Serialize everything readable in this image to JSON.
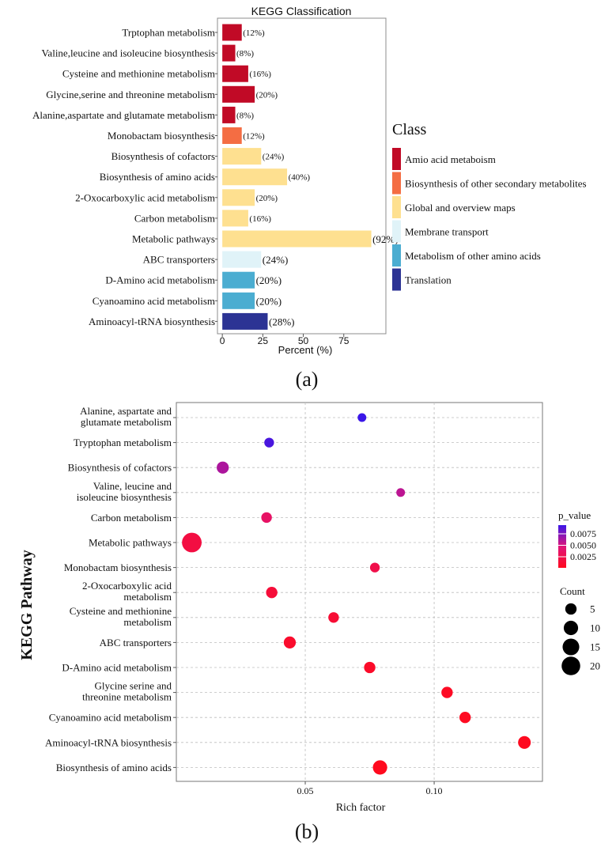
{
  "panel_a_label": "(a)",
  "panel_b_label": "(b)",
  "chart_data": [
    {
      "type": "bar",
      "orientation": "horizontal",
      "title": "KEGG Classification",
      "xlabel": "Percent (%)",
      "ylabel": "",
      "xlim": [
        -3,
        101
      ],
      "xticks": [
        0,
        25,
        50,
        75
      ],
      "grid": false,
      "legend_title": "Class",
      "legend_position": "right",
      "classes": [
        {
          "name": "Amio acid metaboism",
          "color": "#C10A26"
        },
        {
          "name": "Biosynthesis of other secondary metabolites",
          "color": "#F46D43"
        },
        {
          "name": "Global and overview maps",
          "color": "#FEE090"
        },
        {
          "name": "Membrane transport",
          "color": "#E0F3F8"
        },
        {
          "name": "Metabolism of other amino acids",
          "color": "#4BADD1"
        },
        {
          "name": "Translation",
          "color": "#2C3394"
        }
      ],
      "bars": [
        {
          "category": "Trptophan metabolism",
          "value": 12,
          "label": "(12%)",
          "class": 0
        },
        {
          "category": "Valine,leucine and isoleucine biosynthesis",
          "value": 8,
          "label": "(8%)",
          "class": 0
        },
        {
          "category": "Cysteine and methionine metabolism",
          "value": 16,
          "label": "(16%)",
          "class": 0
        },
        {
          "category": "Glycine,serine and threonine metabolism",
          "value": 20,
          "label": "(20%)",
          "class": 0
        },
        {
          "category": "Alanine,aspartate and glutamate metabolism",
          "value": 8,
          "label": "(8%)",
          "class": 0
        },
        {
          "category": "Monobactam biosynthesis",
          "value": 12,
          "label": "(12%)",
          "class": 1
        },
        {
          "category": "Biosynthesis of cofactors",
          "value": 24,
          "label": "(24%)",
          "class": 2
        },
        {
          "category": "Biosynthesis of amino acids",
          "value": 40,
          "label": "(40%)",
          "class": 2
        },
        {
          "category": "2-Oxocarboxylic acid metabolism",
          "value": 20,
          "label": "(20%)",
          "class": 2
        },
        {
          "category": "Carbon metabolism",
          "value": 16,
          "label": "(16%)",
          "class": 2
        },
        {
          "category": "Metabolic pathways",
          "value": 92,
          "label": "(92%)",
          "class": 2
        },
        {
          "category": "ABC transporters",
          "value": 24,
          "label": "(24%)",
          "class": 3
        },
        {
          "category": "D-Amino acid metabolism",
          "value": 20,
          "label": "(20%)",
          "class": 4
        },
        {
          "category": "Cyanoamino acid metabolism",
          "value": 20,
          "label": "(20%)",
          "class": 4
        },
        {
          "category": "Aminoacyl-tRNA biosynthesis",
          "value": 28,
          "label": "(28%)",
          "class": 5
        }
      ]
    },
    {
      "type": "scatter",
      "title": "",
      "xlabel": "Rich factor",
      "ylabel": "KEGG Pathway",
      "xlim": [
        0.0,
        0.142
      ],
      "xticks": [
        0.05,
        0.1
      ],
      "xtick_labels": [
        "0.05",
        "0.10"
      ],
      "grid": true,
      "color_legend_title": "p_value",
      "color_legend_ticks": [
        "0.0075",
        "0.0050",
        "0.0025"
      ],
      "color_scale": {
        "min_color": "#FF0A1E",
        "max_color": "#3A16E8",
        "min": 0.0005,
        "max": 0.0092
      },
      "size_legend_title": "Count",
      "size_legend_values": [
        5,
        10,
        15,
        20
      ],
      "points": [
        {
          "pathway": "Alanine, aspartate and glutamate metabolism",
          "label_lines": [
            "Alanine, aspartate and",
            "glutamate metabolism"
          ],
          "rich_factor": 0.072,
          "p_value": 0.0092,
          "count": 2
        },
        {
          "pathway": "Tryptophan metabolism",
          "label_lines": [
            "Tryptophan metabolism"
          ],
          "rich_factor": 0.036,
          "p_value": 0.0088,
          "count": 3
        },
        {
          "pathway": "Biosynthesis of cofactors",
          "label_lines": [
            "Biosynthesis of cofactors"
          ],
          "rich_factor": 0.018,
          "p_value": 0.0062,
          "count": 6
        },
        {
          "pathway": "Valine, leucine and isoleucine biosynthesis",
          "label_lines": [
            "Valine, leucine and",
            "isoleucine biosynthesis"
          ],
          "rich_factor": 0.087,
          "p_value": 0.0058,
          "count": 2
        },
        {
          "pathway": "Carbon metabolism",
          "label_lines": [
            "Carbon metabolism"
          ],
          "rich_factor": 0.035,
          "p_value": 0.0038,
          "count": 4
        },
        {
          "pathway": "Metabolic pathways",
          "label_lines": [
            "Metabolic pathways"
          ],
          "rich_factor": 0.006,
          "p_value": 0.0022,
          "count": 23
        },
        {
          "pathway": "Monobactam biosynthesis",
          "label_lines": [
            "Monobactam biosynthesis"
          ],
          "rich_factor": 0.077,
          "p_value": 0.0026,
          "count": 3
        },
        {
          "pathway": "2-Oxocarboxylic acid metabolism",
          "label_lines": [
            "2-Oxocarboxylic acid",
            "metabolism"
          ],
          "rich_factor": 0.037,
          "p_value": 0.0018,
          "count": 5
        },
        {
          "pathway": "Cysteine and methionine metabolism",
          "label_lines": [
            "Cysteine and methionine",
            "metabolism"
          ],
          "rich_factor": 0.061,
          "p_value": 0.0016,
          "count": 4
        },
        {
          "pathway": "ABC transporters",
          "label_lines": [
            "ABC transporters"
          ],
          "rich_factor": 0.044,
          "p_value": 0.0012,
          "count": 6
        },
        {
          "pathway": "D-Amino acid metabolism",
          "label_lines": [
            "D-Amino acid metabolism"
          ],
          "rich_factor": 0.075,
          "p_value": 0.001,
          "count": 5
        },
        {
          "pathway": "Glycine serine and threonine metabolism",
          "label_lines": [
            "Glycine serine and",
            "threonine metabolism"
          ],
          "rich_factor": 0.105,
          "p_value": 0.0008,
          "count": 5
        },
        {
          "pathway": "Cyanoamino acid metabolism",
          "label_lines": [
            "Cyanoamino acid metabolism"
          ],
          "rich_factor": 0.112,
          "p_value": 0.0007,
          "count": 5
        },
        {
          "pathway": "Aminoacyl-tRNA biosynthesis",
          "label_lines": [
            "Aminoacyl-tRNA biosynthesis"
          ],
          "rich_factor": 0.135,
          "p_value": 0.0006,
          "count": 7
        },
        {
          "pathway": "Biosynthesis of amino acids",
          "label_lines": [
            "Biosynthesis of amino acids"
          ],
          "rich_factor": 0.079,
          "p_value": 0.0005,
          "count": 10
        }
      ]
    }
  ]
}
